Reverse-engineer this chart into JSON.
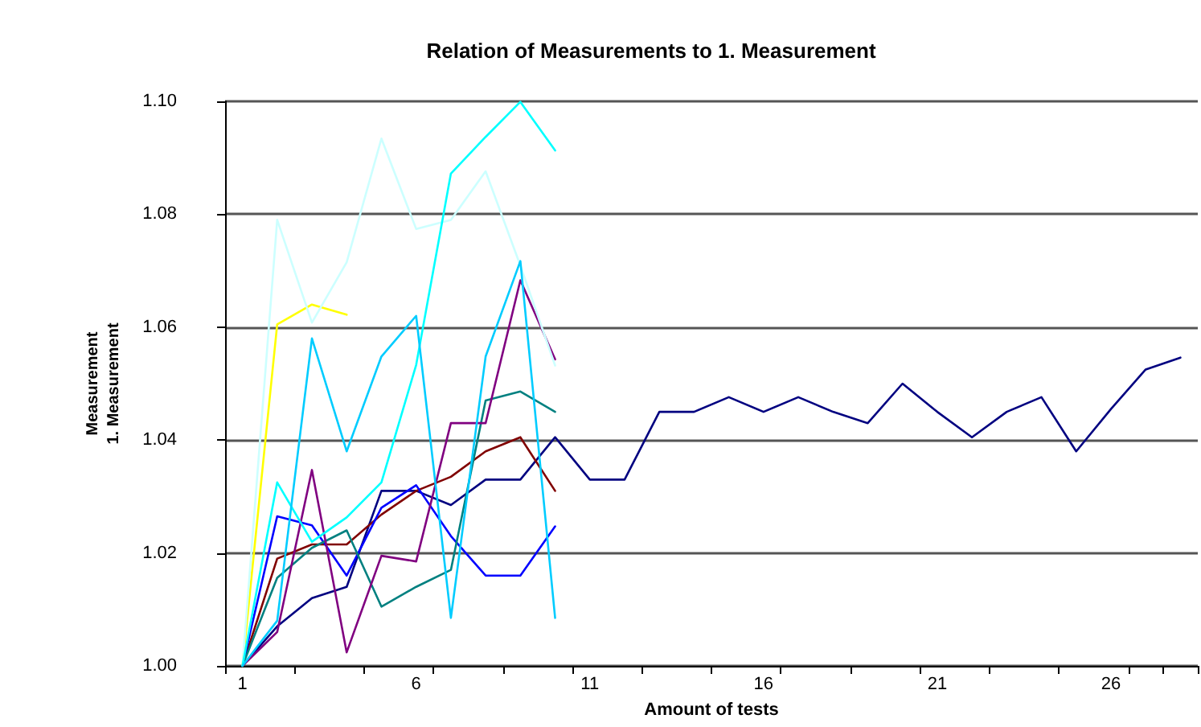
{
  "chart_data": {
    "type": "line",
    "title": "Relation of Measurements to 1. Measurement",
    "xlabel": "Amount of tests",
    "ylabel": "Measurement\n1. Measurement",
    "categories": [
      "1",
      null,
      null,
      null,
      null,
      "6",
      null,
      null,
      null,
      null,
      "11",
      null,
      null,
      null,
      null,
      "16",
      null,
      null,
      null,
      null,
      "21",
      null,
      null,
      null,
      null,
      "26",
      null,
      null
    ],
    "ylim": [
      1.0,
      1.1
    ],
    "yticks": [
      {
        "value": 1.0,
        "label": "1.00"
      },
      1.02,
      1.04,
      1.06,
      1.08,
      {
        "value": 1.1,
        "label": "1.10"
      }
    ],
    "grid": "y",
    "marker": "none",
    "line_style": "solid",
    "series": [
      {
        "color": "#000080",
        "values": [
          1.0,
          1.007,
          1.012,
          1.014,
          1.031,
          1.031,
          1.0285,
          1.033,
          1.033,
          1.0405,
          1.033,
          1.033,
          1.045,
          1.045,
          1.0476,
          1.045,
          1.0476,
          1.045,
          1.043,
          1.05,
          1.045,
          1.0405,
          1.045,
          1.0476,
          1.038,
          1.0455,
          1.0525,
          1.0546
        ]
      },
      {
        "color": "#800000",
        "values": [
          1.0,
          1.019,
          1.0215,
          1.0215,
          1.0268,
          1.031,
          1.0335,
          1.038,
          1.0405,
          1.031,
          null,
          null,
          null,
          null,
          null,
          null,
          null,
          null,
          null,
          null,
          null,
          null,
          null,
          null,
          null,
          null,
          null,
          null
        ]
      },
      {
        "color": "#0000ff",
        "values": [
          1.0,
          1.0265,
          1.0249,
          1.016,
          1.028,
          1.032,
          1.023,
          1.016,
          1.016,
          1.0247,
          null,
          null,
          null,
          null,
          null,
          null,
          null,
          null,
          null,
          null,
          null,
          null,
          null,
          null,
          null,
          null,
          null,
          null
        ]
      },
      {
        "color": "#008080",
        "values": [
          1.0,
          1.0156,
          1.0209,
          1.024,
          1.0105,
          1.014,
          1.017,
          1.047,
          1.0486,
          1.045,
          null,
          null,
          null,
          null,
          null,
          null,
          null,
          null,
          null,
          null,
          null,
          null,
          null,
          null,
          null,
          null,
          null,
          null
        ]
      },
      {
        "color": "#800080",
        "values": [
          1.0,
          1.006,
          1.0347,
          1.0024,
          1.0195,
          1.0185,
          1.043,
          1.043,
          1.0683,
          1.0543,
          null,
          null,
          null,
          null,
          null,
          null,
          null,
          null,
          null,
          null,
          null,
          null,
          null,
          null,
          null,
          null,
          null,
          null
        ]
      },
      {
        "color": "#ffff00",
        "values": [
          1.0,
          1.0605,
          1.064,
          1.0622,
          null,
          null,
          null,
          null,
          null,
          null,
          null,
          null,
          null,
          null,
          null,
          null,
          null,
          null,
          null,
          null,
          null,
          null,
          null,
          null,
          null,
          null,
          null,
          null
        ]
      },
      {
        "color": "#ccffff",
        "values": [
          1.0,
          1.079,
          1.0608,
          1.0715,
          1.0934,
          1.0774,
          1.079,
          1.0876,
          1.0709,
          1.0532,
          null,
          null,
          null,
          null,
          null,
          null,
          null,
          null,
          null,
          null,
          null,
          null,
          null,
          null,
          null,
          null,
          null,
          null
        ]
      },
      {
        "color": "#00ffff",
        "values": [
          1.0,
          1.0325,
          1.022,
          1.0263,
          1.0325,
          1.0533,
          1.0872,
          1.0937,
          1.0999,
          1.0913,
          null,
          null,
          null,
          null,
          null,
          null,
          null,
          null,
          null,
          null,
          null,
          null,
          null,
          null,
          null,
          null,
          null,
          null
        ]
      },
      {
        "color": "#00ccff",
        "values": [
          1.0,
          1.008,
          1.058,
          1.038,
          1.0548,
          1.062,
          1.0085,
          1.0548,
          1.0717,
          1.0085,
          null,
          null,
          null,
          null,
          null,
          null,
          null,
          null,
          null,
          null,
          null,
          null,
          null,
          null,
          null,
          null,
          null,
          null
        ]
      }
    ]
  }
}
